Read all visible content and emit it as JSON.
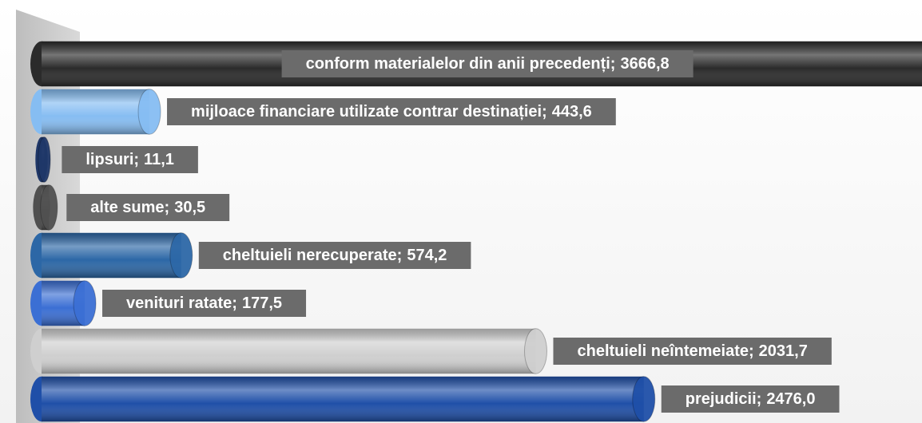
{
  "chart_data": {
    "type": "bar",
    "orientation": "horizontal",
    "categories": [
      "conform materialelor din anii precedenți;",
      "mijloace financiare utilizate contrar destinației;",
      "lipsuri;",
      "alte sume;",
      "cheltuieli nerecuperate;",
      "venituri ratate;",
      "cheltuieli neîntemeiate;",
      "prejudicii;"
    ],
    "values": [
      3666.8,
      443.6,
      11.1,
      30.5,
      574.2,
      177.5,
      2031.7,
      2476.0
    ],
    "value_labels": [
      "3666,8",
      "443,6",
      "11,1",
      "30,5",
      "574,2",
      "177,5",
      "2031,7",
      "2476,0"
    ],
    "colors": [
      "#2b2b2b",
      "#86bdf2",
      "#1f3768",
      "#505050",
      "#2c67a6",
      "#3b6fd4",
      "#cfcfcf",
      "#1f4fa8"
    ],
    "xlim": [
      0,
      3620
    ]
  }
}
